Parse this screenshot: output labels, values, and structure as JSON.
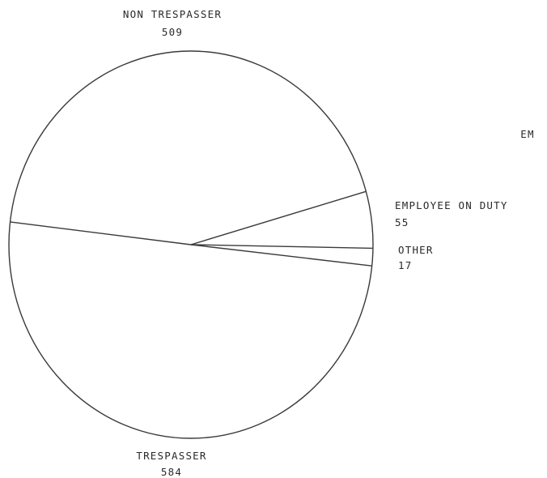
{
  "chart_data": {
    "type": "pie",
    "title": "",
    "slices": [
      {
        "label": "NON TRESPASSER",
        "value": 509
      },
      {
        "label": "EMPLOYEE ON DUTY",
        "value": 55
      },
      {
        "label": "OTHER",
        "value": 17
      },
      {
        "label": "TRESPASSER",
        "value": 584
      }
    ],
    "values": [
      509,
      55,
      17,
      584
    ],
    "stray_text": "EM",
    "colors": {
      "stroke": "#3a3a3a",
      "background": "#ffffff",
      "text": "#2a2a2a"
    }
  }
}
